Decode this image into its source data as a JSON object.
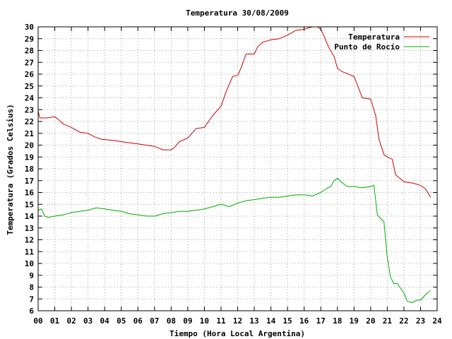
{
  "chart_data": {
    "type": "line",
    "title": "Temperatura 30/08/2009",
    "xlabel": "Tiempo (Hora Local Argentina)",
    "ylabel": "Temperatura (Grados Celsius)",
    "xlim": [
      0,
      24
    ],
    "ylim": [
      6,
      30
    ],
    "x_ticks": [
      "00",
      "01",
      "02",
      "03",
      "04",
      "05",
      "06",
      "07",
      "08",
      "09",
      "10",
      "11",
      "12",
      "13",
      "14",
      "15",
      "16",
      "17",
      "18",
      "19",
      "20",
      "21",
      "22",
      "23",
      "24"
    ],
    "y_ticks": [
      6,
      7,
      8,
      9,
      10,
      11,
      12,
      13,
      14,
      15,
      16,
      17,
      18,
      19,
      20,
      21,
      22,
      23,
      24,
      25,
      26,
      27,
      28,
      29,
      30
    ],
    "grid": true,
    "legend_position": "top-right",
    "series": [
      {
        "name": "Temperatura",
        "color": "#cc0000",
        "x": [
          0,
          0.1,
          0.25,
          0.5,
          1,
          1.2,
          1.5,
          2,
          2.5,
          3,
          3.4,
          3.8,
          4.5,
          5,
          5.5,
          6,
          6.5,
          7,
          7.5,
          8,
          8.2,
          8.5,
          9,
          9.5,
          10,
          10.5,
          11,
          11.3,
          11.7,
          12,
          12.2,
          12.5,
          13,
          13.2,
          13.5,
          14,
          14.5,
          15,
          15.5,
          16,
          16.5,
          16.8,
          17,
          17.2,
          17.5,
          17.8,
          18,
          18.3,
          18.5,
          19,
          19.5,
          20,
          20.3,
          20.5,
          20.8,
          21,
          21.3,
          21.5,
          22,
          22.5,
          23,
          23.3,
          23.6
        ],
        "y": [
          22.9,
          22.3,
          22.3,
          22.3,
          22.4,
          22.2,
          21.8,
          21.5,
          21.1,
          21.0,
          20.7,
          20.5,
          20.4,
          20.3,
          20.2,
          20.1,
          20.0,
          19.9,
          19.6,
          19.6,
          19.8,
          20.3,
          20.6,
          21.4,
          21.5,
          22.5,
          23.3,
          24.5,
          25.8,
          25.9,
          26.5,
          27.7,
          27.7,
          28.3,
          28.7,
          28.9,
          29.0,
          29.3,
          29.7,
          29.8,
          30.0,
          30.0,
          29.8,
          29.2,
          28.2,
          27.5,
          26.5,
          26.2,
          26.1,
          25.8,
          24.0,
          23.9,
          22.5,
          20.5,
          19.2,
          19.0,
          18.8,
          17.5,
          16.9,
          16.8,
          16.6,
          16.3,
          15.6
        ]
      },
      {
        "name": "Punto de Rocío",
        "color": "#00aa00",
        "x": [
          0,
          0.2,
          0.4,
          0.6,
          1,
          1.5,
          2,
          2.5,
          3,
          3.5,
          4,
          4.5,
          5,
          5.5,
          6,
          6.5,
          7,
          7.5,
          8,
          8.5,
          9,
          9.5,
          10,
          10.5,
          11,
          11.5,
          12,
          12.5,
          13,
          13.5,
          14,
          14.5,
          15,
          15.5,
          16,
          16.5,
          17,
          17.3,
          17.6,
          17.8,
          18,
          18.3,
          18.6,
          19,
          19.5,
          20,
          20.2,
          20.4,
          20.6,
          20.8,
          21,
          21.2,
          21.4,
          21.6,
          22,
          22.2,
          22.5,
          22.8,
          23,
          23.2,
          23.4,
          23.6
        ],
        "y": [
          14.5,
          14.6,
          14.0,
          13.9,
          14.0,
          14.1,
          14.3,
          14.4,
          14.5,
          14.7,
          14.6,
          14.5,
          14.4,
          14.2,
          14.1,
          14.0,
          14.0,
          14.2,
          14.3,
          14.4,
          14.4,
          14.5,
          14.6,
          14.8,
          15.0,
          14.8,
          15.1,
          15.3,
          15.4,
          15.5,
          15.6,
          15.6,
          15.7,
          15.8,
          15.8,
          15.7,
          16.0,
          16.3,
          16.5,
          17.0,
          17.2,
          16.8,
          16.5,
          16.5,
          16.4,
          16.5,
          16.6,
          14.1,
          13.8,
          13.5,
          10.5,
          8.8,
          8.3,
          8.3,
          7.5,
          6.8,
          6.7,
          6.9,
          6.9,
          7.2,
          7.5,
          7.7
        ]
      }
    ]
  }
}
